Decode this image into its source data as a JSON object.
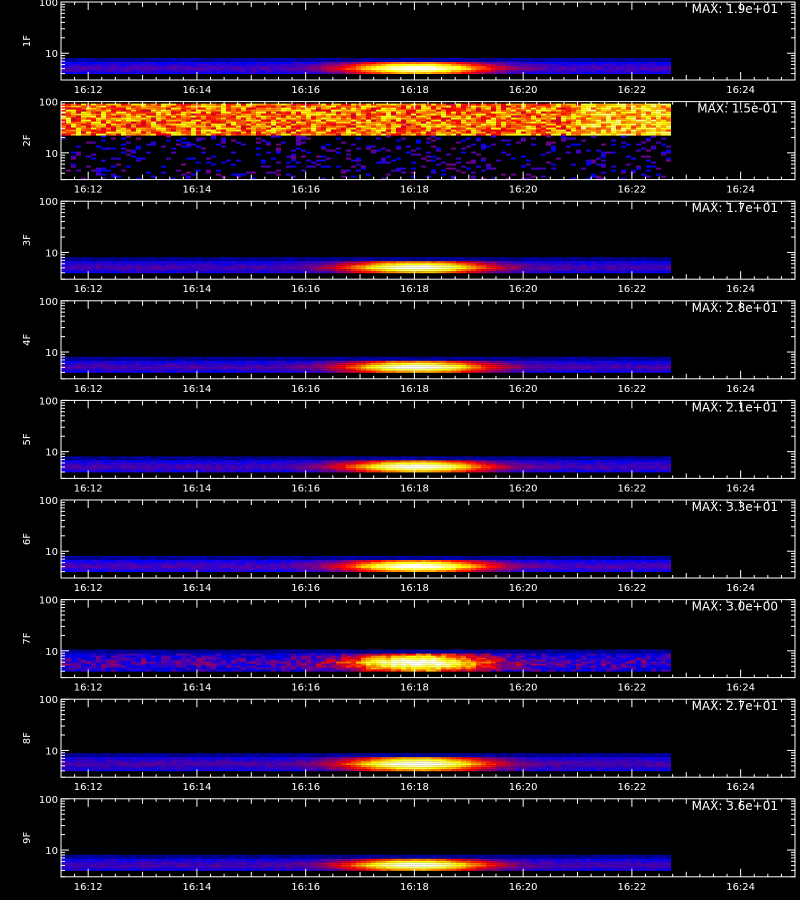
{
  "chart_data": {
    "type": "heatmap",
    "xlabel": "",
    "x_range_minutes": [
      "16:11.5",
      "16:25.0"
    ],
    "x_ticks": [
      "16:12",
      "16:14",
      "16:16",
      "16:18",
      "16:20",
      "16:22",
      "16:24"
    ],
    "y_scale": "log",
    "y_range": [
      3,
      100
    ],
    "y_ticks": [
      "10",
      "100"
    ],
    "data_end_time": "16:22.7",
    "colormap": [
      "#000000",
      "#0000ff",
      "#ff0000",
      "#ffff00",
      "#ffffff"
    ],
    "panels": [
      {
        "label": "1F",
        "max_text": "MAX: 1.9e+01",
        "mode": "band",
        "band_y": [
          4,
          7
        ],
        "peak_time": "16:18.0",
        "peak_y": 5.5,
        "peak_level": 1.0
      },
      {
        "label": "2F",
        "max_text": "MAX: 1.5e-01",
        "mode": "noise",
        "band_y": [
          30,
          70
        ],
        "peak_level": 0.85
      },
      {
        "label": "3F",
        "max_text": "MAX: 1.7e+01",
        "mode": "band",
        "band_y": [
          4,
          7
        ],
        "peak_time": "16:18.0",
        "peak_y": 5.5,
        "peak_level": 1.0
      },
      {
        "label": "4F",
        "max_text": "MAX: 2.8e+01",
        "mode": "band",
        "band_y": [
          4,
          7
        ],
        "peak_time": "16:18.0",
        "peak_y": 5.5,
        "peak_level": 1.0
      },
      {
        "label": "5F",
        "max_text": "MAX: 2.1e+01",
        "mode": "band",
        "band_y": [
          4,
          7
        ],
        "peak_time": "16:18.0",
        "peak_y": 5.5,
        "peak_level": 1.0
      },
      {
        "label": "6F",
        "max_text": "MAX: 3.3e+01",
        "mode": "band",
        "band_y": [
          4,
          7
        ],
        "peak_time": "16:18.0",
        "peak_y": 5.5,
        "peak_level": 1.0
      },
      {
        "label": "7F",
        "max_text": "MAX: 3.0e+00",
        "mode": "band_noisy",
        "band_y": [
          4,
          9
        ],
        "peak_time": "16:18.0",
        "peak_y": 8.0,
        "peak_level": 1.0
      },
      {
        "label": "8F",
        "max_text": "MAX: 2.7e+01",
        "mode": "band",
        "band_y": [
          4,
          8
        ],
        "peak_time": "16:18.0",
        "peak_y": 6.5,
        "peak_level": 1.0
      },
      {
        "label": "9F",
        "max_text": "MAX: 3.6e+01",
        "mode": "band",
        "band_y": [
          4,
          7
        ],
        "peak_time": "16:18.0",
        "peak_y": 5.5,
        "peak_level": 1.0
      }
    ]
  }
}
